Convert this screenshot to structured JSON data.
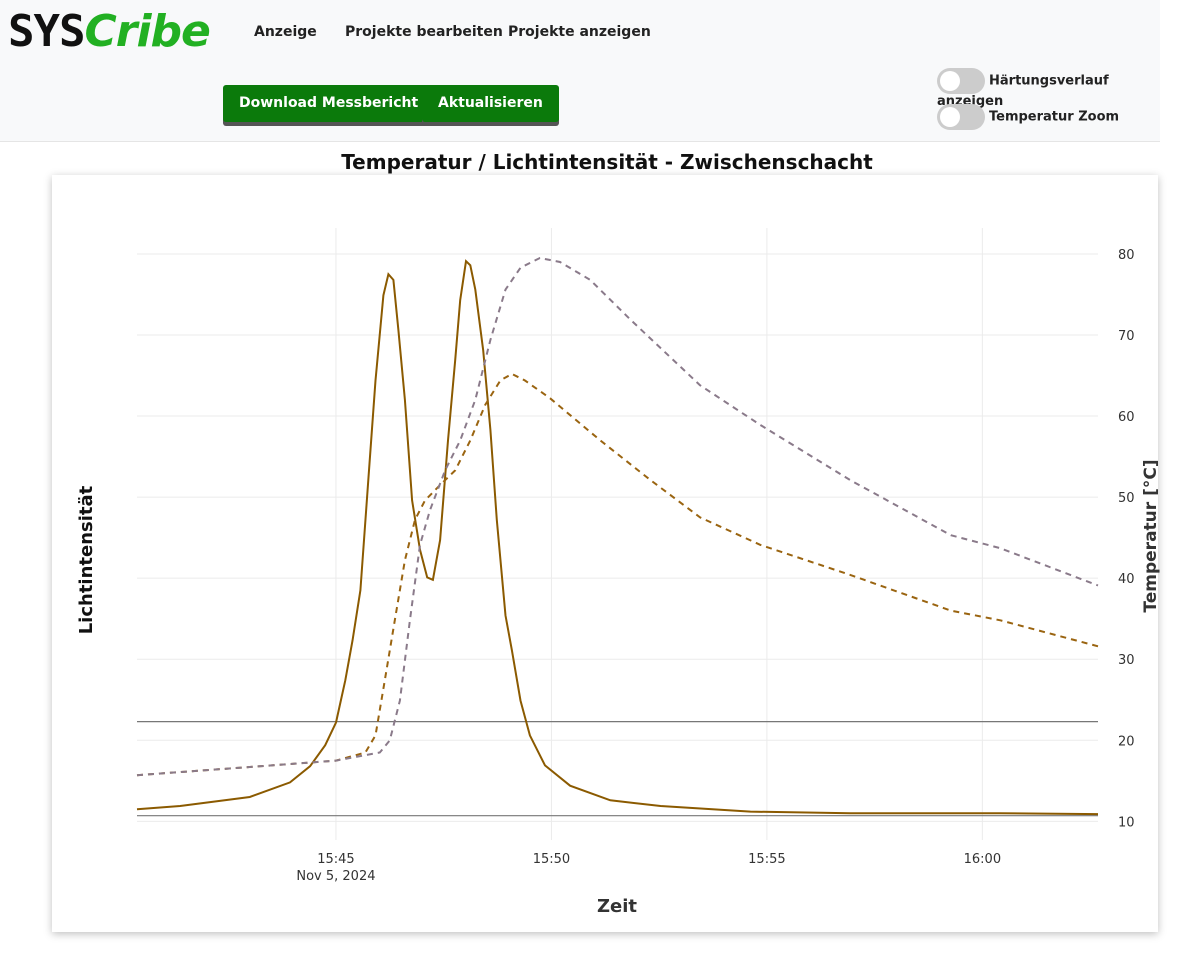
{
  "header": {
    "logo_dark": "SYS",
    "logo_green": "Cribe",
    "nav": [
      "Anzeige",
      "Projekte bearbeiten",
      "Projekte anzeigen"
    ],
    "buttons": [
      "Download Messbericht",
      "Aktualisieren"
    ],
    "toggles": [
      "Härtungsverlauf anzeigen",
      "Temperatur Zoom"
    ]
  },
  "chart_data": {
    "type": "line",
    "title": "Temperatur / Lichtintensität - Zwischenschacht",
    "x_label": "Zeit",
    "y_label": "Lichtintensität",
    "y2_label": "Temperatur [°C]",
    "x_date_label": "Nov 5, 2024",
    "xlim": [
      "15:40:23",
      "16:02:41"
    ],
    "xticks": [
      "15:45",
      "15:50",
      "15:55",
      "16:00"
    ],
    "ylim": [
      7.7,
      83.2
    ],
    "y2lim": [
      7.7,
      83.2
    ],
    "y2ticks": [
      10,
      20,
      30,
      40,
      50,
      60,
      70,
      80
    ],
    "grid": true,
    "hlines": [
      22.3,
      10.7
    ],
    "hline_color": "#777777",
    "series": [
      {
        "color": "#8b5a00",
        "dash": false,
        "axis": "y",
        "x": [
          "15:40:23",
          "15:41:23",
          "15:43:00",
          "15:43:56",
          "15:44:24",
          "15:44:45",
          "15:45:00",
          "15:45:13",
          "15:45:23",
          "15:45:34",
          "15:45:45",
          "15:45:55",
          "15:46:06",
          "15:46:13",
          "15:46:20",
          "15:46:27",
          "15:46:36",
          "15:46:46",
          "15:46:57",
          "15:47:07",
          "15:47:15",
          "15:47:25",
          "15:47:36",
          "15:47:46",
          "15:47:53",
          "15:48:01",
          "15:48:07",
          "15:48:14",
          "15:48:25",
          "15:48:35",
          "15:48:44",
          "15:48:56",
          "15:49:05",
          "15:49:17",
          "15:49:30",
          "15:49:51",
          "15:50:26",
          "15:51:22",
          "15:52:32",
          "15:54:37",
          "15:56:56",
          "16:00:25",
          "16:02:41"
        ],
        "values": [
          11.5,
          11.9,
          13.0,
          14.8,
          16.8,
          19.4,
          22.2,
          27.4,
          32.3,
          38.5,
          52.1,
          64.4,
          74.9,
          77.5,
          76.8,
          70.6,
          62.0,
          49.6,
          43.5,
          40.1,
          39.8,
          44.7,
          57.0,
          66.9,
          74.3,
          79.1,
          78.6,
          75.6,
          68.1,
          58.3,
          47.2,
          35.4,
          31.1,
          24.9,
          20.6,
          16.9,
          14.4,
          12.6,
          11.9,
          11.2,
          11.0,
          11.0,
          10.9
        ]
      },
      {
        "color": "#9a6410",
        "dash": true,
        "axis": "y2",
        "x": [
          "15:40:23",
          "15:43:00",
          "15:45:00",
          "15:45:41",
          "15:45:55",
          "15:46:08",
          "15:46:22",
          "15:46:36",
          "15:46:50",
          "15:47:04",
          "15:47:25",
          "15:47:46",
          "15:48:07",
          "15:48:28",
          "15:48:49",
          "15:49:05",
          "15:49:23",
          "15:49:58",
          "15:51:08",
          "15:52:18",
          "15:53:27",
          "15:54:51",
          "15:56:56",
          "15:59:16",
          "16:00:25",
          "16:02:41"
        ],
        "values": [
          15.7,
          16.7,
          17.5,
          18.5,
          20.6,
          27.4,
          34.8,
          42.2,
          47.2,
          49.6,
          51.5,
          53.3,
          57.0,
          61.4,
          64.4,
          65.2,
          64.4,
          62.2,
          57.0,
          52.1,
          47.5,
          44.1,
          40.4,
          36.0,
          34.8,
          31.6
        ]
      },
      {
        "color": "#8a7a8a",
        "dash": true,
        "axis": "y2",
        "x": [
          "15:40:23",
          "15:43:00",
          "15:45:00",
          "15:46:01",
          "15:46:15",
          "15:46:29",
          "15:46:43",
          "15:46:57",
          "15:47:11",
          "15:47:32",
          "15:47:53",
          "15:48:14",
          "15:48:35",
          "15:48:56",
          "15:49:17",
          "15:49:44",
          "15:50:12",
          "15:50:54",
          "15:51:50",
          "15:53:27",
          "15:54:51",
          "15:56:56",
          "15:59:16",
          "16:00:25",
          "16:02:41"
        ],
        "values": [
          15.7,
          16.7,
          17.5,
          18.5,
          20.0,
          24.9,
          34.8,
          44.1,
          48.4,
          53.3,
          57.0,
          62.0,
          69.4,
          75.6,
          78.3,
          79.5,
          79.0,
          76.8,
          71.9,
          63.8,
          58.9,
          52.1,
          45.3,
          43.7,
          39.1
        ]
      }
    ]
  }
}
